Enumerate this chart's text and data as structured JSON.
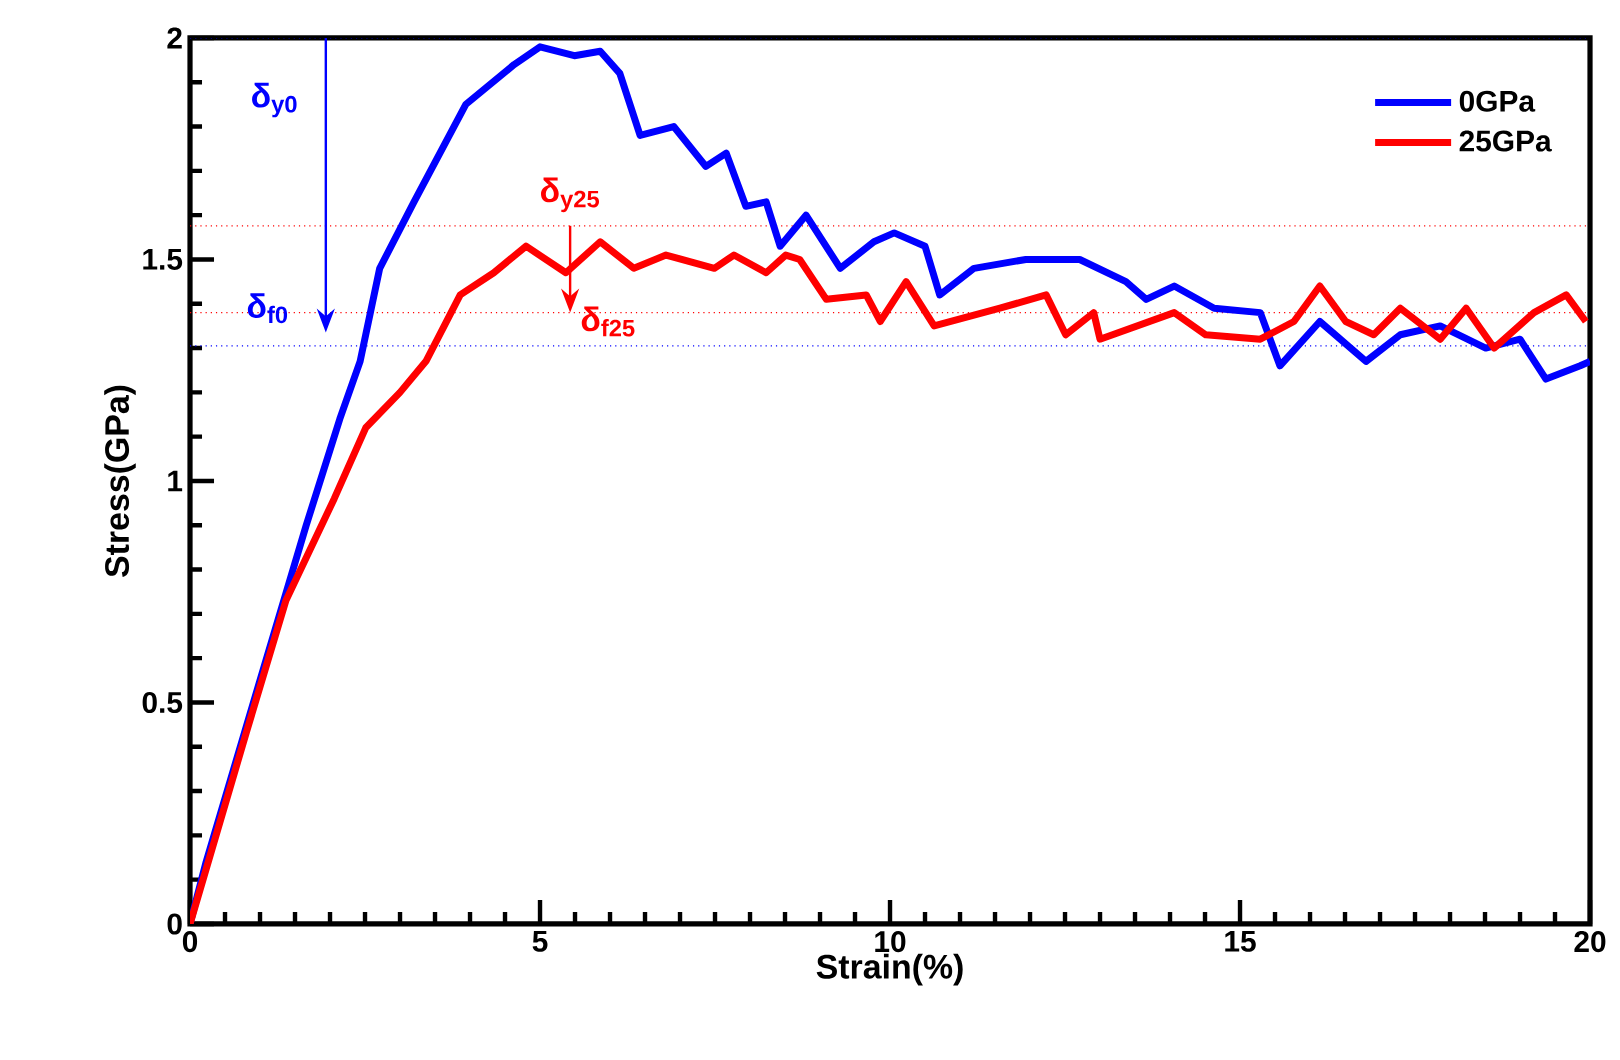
{
  "chart_data": {
    "type": "line",
    "xlabel": "Strain(%)",
    "ylabel": "Stress(GPa)",
    "xlim": [
      0,
      20
    ],
    "ylim": [
      0,
      2
    ],
    "xticks": [
      0,
      5,
      10,
      15,
      20
    ],
    "yticks": [
      0,
      0.5,
      1,
      1.5,
      2
    ],
    "legend": "top right",
    "grid": false,
    "marker": "none",
    "line_style": "solid",
    "series": [
      {
        "name": "0GPa",
        "color": "#0000ff",
        "x": [
          0,
          0.23,
          1.0,
          1.66,
          2.14,
          2.43,
          2.71,
          3.2,
          3.94,
          4.63,
          5.0,
          5.49,
          5.86,
          6.14,
          6.43,
          6.91,
          7.37,
          7.66,
          7.94,
          8.23,
          8.43,
          8.8,
          9.29,
          9.77,
          10.06,
          10.5,
          10.71,
          11.2,
          11.94,
          12.71,
          13.37,
          13.66,
          14.06,
          14.63,
          15.29,
          15.57,
          16.14,
          16.8,
          17.29,
          17.86,
          18.51,
          19.0,
          19.37,
          19.86,
          20
        ],
        "values": [
          0,
          0.14,
          0.55,
          0.9,
          1.14,
          1.27,
          1.48,
          1.63,
          1.85,
          1.94,
          1.98,
          1.96,
          1.97,
          1.92,
          1.78,
          1.8,
          1.71,
          1.74,
          1.62,
          1.63,
          1.53,
          1.6,
          1.48,
          1.54,
          1.56,
          1.53,
          1.42,
          1.48,
          1.5,
          1.5,
          1.45,
          1.41,
          1.44,
          1.39,
          1.38,
          1.26,
          1.36,
          1.27,
          1.33,
          1.35,
          1.3,
          1.32,
          1.23,
          1.26,
          1.27
        ]
      },
      {
        "name": "25GPa",
        "color": "#ff0000",
        "x": [
          0,
          0.8,
          1.37,
          2.06,
          2.51,
          3.0,
          3.37,
          3.86,
          4.34,
          4.8,
          5.37,
          5.86,
          6.34,
          6.8,
          7.49,
          7.77,
          8.23,
          8.51,
          8.71,
          9.09,
          9.66,
          9.86,
          10.23,
          10.63,
          11.57,
          12.23,
          12.51,
          12.91,
          13.0,
          14.06,
          14.51,
          15.29,
          15.77,
          16.14,
          16.51,
          16.91,
          17.29,
          17.86,
          18.23,
          18.63,
          19.2,
          19.66,
          19.94
        ],
        "values": [
          0,
          0.43,
          0.73,
          0.96,
          1.12,
          1.2,
          1.27,
          1.42,
          1.47,
          1.53,
          1.47,
          1.54,
          1.48,
          1.51,
          1.48,
          1.51,
          1.47,
          1.51,
          1.5,
          1.41,
          1.42,
          1.36,
          1.45,
          1.35,
          1.39,
          1.42,
          1.33,
          1.38,
          1.32,
          1.38,
          1.33,
          1.32,
          1.36,
          1.44,
          1.36,
          1.33,
          1.39,
          1.32,
          1.39,
          1.3,
          1.38,
          1.42,
          1.36
        ]
      }
    ],
    "ref_lines": [
      {
        "axis": "y",
        "value": 2.0,
        "color": "#0000ff",
        "line_style": "dotted"
      },
      {
        "axis": "y",
        "value": 1.305,
        "color": "#0000ff",
        "line_style": "dotted"
      },
      {
        "axis": "y",
        "value": 1.576,
        "color": "#ff0000",
        "line_style": "dotted"
      },
      {
        "axis": "y",
        "value": 1.38,
        "color": "#ff0000",
        "line_style": "dotted"
      }
    ],
    "annotations": [
      "δ$_{y0}$",
      "δ$_{f0}$",
      {
        "text": "δ$_{y25}$",
        "x": 5.43,
        "y": 1.38
      },
      "δ$_{f25}$"
    ]
  }
}
